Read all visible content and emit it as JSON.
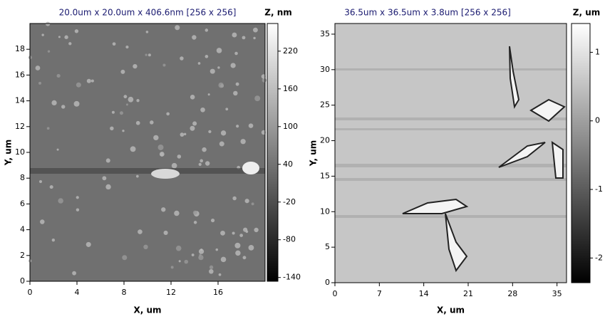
{
  "chart_data": [
    {
      "type": "image",
      "title": "20.0um x 20.0um x 406.6nm [256 x 256]",
      "xlabel": "X, um",
      "ylabel": "Y, um",
      "colorbar_label": "Z, nm",
      "xlim": [
        0,
        20
      ],
      "xticks": [
        0,
        4,
        8,
        12,
        16
      ],
      "ylim": [
        0,
        20
      ],
      "yticks": [
        0,
        2,
        4,
        6,
        8,
        10,
        12,
        14,
        16,
        18
      ],
      "zlim": [
        -146,
        264
      ],
      "zticks": [
        220,
        160,
        100,
        40,
        -20,
        -80,
        -140
      ],
      "color": "#707070"
    },
    {
      "type": "image",
      "title": "36.5um x 36.5um x 3.8um [256 x 256]",
      "xlabel": "X, um",
      "ylabel": "Y, um",
      "colorbar_label": "Z, um",
      "xlim": [
        0,
        36.5
      ],
      "xticks": [
        0,
        7,
        14,
        21,
        28,
        35
      ],
      "ylim": [
        0,
        36.5
      ],
      "yticks": [
        0,
        5,
        10,
        15,
        20,
        25,
        30,
        35
      ],
      "zlim": [
        -2.36,
        1.42
      ],
      "zticks": [
        1,
        0,
        -1,
        -2
      ],
      "color": "#c6c6c6"
    }
  ]
}
